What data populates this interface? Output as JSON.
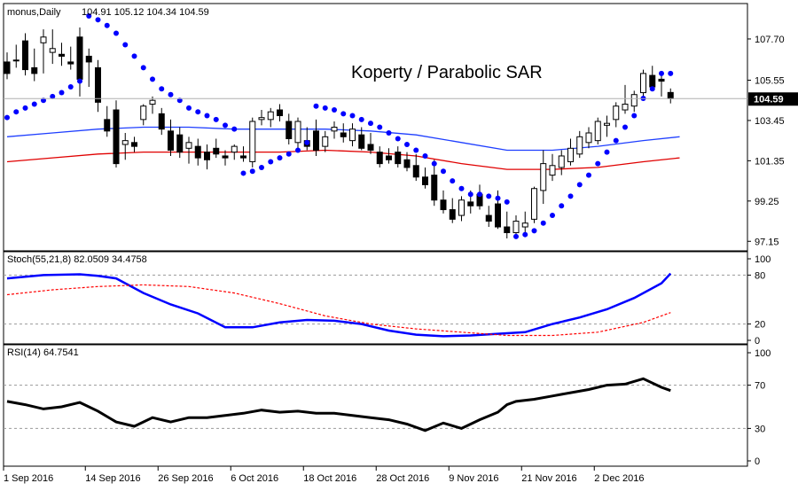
{
  "main": {
    "header": "monus,Daily",
    "ohlc_values": "104.91 105.12 104.34 104.59",
    "annotation": "Koperty / Parabolic SAR",
    "last_price_label": "104.59"
  },
  "stoch": {
    "header": "Stoch(55,21,8) 82.0509 34.4758",
    "levels": [
      100,
      80,
      20,
      0
    ]
  },
  "rsi": {
    "header": "RSI(14) 64.7541",
    "levels": [
      100,
      70,
      30,
      0
    ]
  },
  "colors": {
    "up": "#ffffff",
    "down": "#000000",
    "sar": "#0000ff",
    "ma_blue": "#1f3fff",
    "ma_red": "#e00000",
    "stoch_main": "#0000ff",
    "stoch_signal": "#ff0000",
    "rsi": "#000000"
  },
  "chart_data": [
    {
      "type": "candlestick",
      "title": "",
      "y_ticks": [
        107.7,
        105.55,
        103.45,
        101.35,
        99.25,
        97.15
      ],
      "ylim": [
        96.7,
        109.5
      ],
      "x_tick_labels": [
        "1 Sep 2016",
        "14 Sep 2016",
        "26 Sep 2016",
        "6 Oct 2016",
        "18 Oct 2016",
        "28 Oct 2016",
        "9 Nov 2016",
        "21 Nov 2016",
        "2 Dec 2016"
      ],
      "x_tick_index": [
        0,
        9,
        17,
        25,
        33,
        41,
        49,
        57,
        65
      ],
      "ohlc": [
        [
          106.5,
          107.0,
          105.6,
          105.9
        ],
        [
          106.6,
          107.4,
          106.2,
          106.6
        ],
        [
          107.6,
          108.0,
          105.8,
          106.1
        ],
        [
          106.2,
          107.2,
          105.5,
          105.9
        ],
        [
          107.5,
          108.2,
          105.9,
          107.8
        ],
        [
          107.0,
          108.2,
          106.4,
          107.2
        ],
        [
          106.9,
          107.5,
          106.3,
          106.8
        ],
        [
          106.5,
          107.3,
          106.1,
          106.4
        ],
        [
          107.8,
          108.3,
          104.7,
          105.6
        ],
        [
          106.8,
          107.2,
          105.2,
          106.5
        ],
        [
          106.2,
          106.6,
          103.9,
          104.4
        ],
        [
          103.5,
          104.2,
          102.6,
          102.9
        ],
        [
          104.0,
          104.5,
          101.0,
          101.2
        ],
        [
          102.2,
          102.8,
          101.4,
          102.4
        ],
        [
          102.3,
          102.6,
          101.8,
          102.1
        ],
        [
          103.5,
          104.3,
          103.2,
          104.2
        ],
        [
          104.3,
          104.7,
          103.8,
          104.5
        ],
        [
          103.8,
          104.1,
          102.7,
          103.0
        ],
        [
          102.9,
          103.5,
          101.6,
          101.9
        ],
        [
          102.7,
          103.1,
          101.5,
          101.8
        ],
        [
          102.0,
          102.6,
          101.2,
          102.3
        ],
        [
          102.1,
          102.5,
          101.1,
          101.5
        ],
        [
          101.8,
          102.2,
          100.9,
          101.4
        ],
        [
          102.0,
          102.5,
          101.5,
          101.7
        ],
        [
          101.6,
          101.9,
          101.1,
          101.5
        ],
        [
          101.8,
          102.2,
          101.4,
          102.1
        ],
        [
          101.6,
          102.1,
          101.3,
          101.5
        ],
        [
          101.3,
          103.6,
          101.0,
          103.4
        ],
        [
          103.5,
          104.0,
          103.2,
          103.6
        ],
        [
          103.5,
          104.1,
          103.1,
          103.9
        ],
        [
          104.0,
          104.3,
          103.4,
          103.7
        ],
        [
          103.4,
          103.8,
          102.2,
          102.5
        ],
        [
          102.3,
          103.6,
          102.0,
          103.4
        ],
        [
          102.4,
          103.1,
          101.9,
          102.1
        ],
        [
          102.9,
          103.5,
          101.6,
          101.9
        ],
        [
          102.1,
          102.9,
          101.8,
          102.6
        ],
        [
          102.9,
          103.4,
          102.5,
          103.1
        ],
        [
          102.8,
          103.3,
          102.3,
          102.6
        ],
        [
          102.4,
          103.3,
          102.1,
          103.0
        ],
        [
          102.7,
          103.1,
          101.9,
          102.0
        ],
        [
          102.2,
          102.8,
          101.7,
          101.9
        ],
        [
          101.8,
          102.1,
          101.0,
          101.2
        ],
        [
          101.6,
          102.0,
          101.2,
          101.4
        ],
        [
          101.8,
          102.1,
          101.0,
          101.2
        ],
        [
          101.4,
          101.8,
          100.8,
          101.0
        ],
        [
          101.1,
          101.7,
          100.3,
          100.5
        ],
        [
          100.5,
          101.0,
          99.9,
          100.1
        ],
        [
          100.6,
          101.4,
          99.0,
          99.3
        ],
        [
          99.3,
          99.8,
          98.6,
          98.8
        ],
        [
          98.8,
          99.4,
          98.1,
          98.3
        ],
        [
          98.5,
          99.5,
          98.2,
          99.3
        ],
        [
          99.2,
          99.8,
          98.6,
          99.0
        ],
        [
          99.6,
          100.1,
          98.8,
          99.0
        ],
        [
          98.5,
          99.0,
          97.9,
          98.2
        ],
        [
          99.1,
          99.8,
          97.8,
          97.9
        ],
        [
          97.9,
          98.7,
          97.3,
          97.6
        ],
        [
          97.6,
          98.5,
          97.3,
          98.2
        ],
        [
          97.9,
          98.7,
          97.6,
          98.1
        ],
        [
          98.3,
          100.0,
          98.1,
          99.9
        ],
        [
          99.8,
          101.9,
          99.1,
          101.2
        ],
        [
          100.6,
          101.7,
          100.3,
          101.1
        ],
        [
          101.0,
          101.9,
          100.6,
          101.6
        ],
        [
          101.3,
          102.5,
          101.1,
          102.0
        ],
        [
          101.7,
          102.9,
          101.5,
          102.6
        ],
        [
          102.3,
          103.1,
          102.0,
          102.8
        ],
        [
          102.4,
          103.6,
          102.2,
          103.4
        ],
        [
          103.2,
          103.7,
          102.6,
          103.3
        ],
        [
          103.5,
          104.4,
          103.1,
          104.2
        ],
        [
          104.0,
          105.3,
          103.8,
          104.3
        ],
        [
          104.2,
          105.0,
          103.9,
          104.8
        ],
        [
          104.9,
          106.1,
          104.6,
          105.9
        ],
        [
          105.8,
          106.3,
          105.0,
          105.2
        ],
        [
          105.6,
          106.0,
          104.7,
          105.5
        ],
        [
          104.91,
          105.12,
          104.34,
          104.59
        ]
      ],
      "sar": [
        [
          0,
          103.6
        ],
        [
          1,
          103.9
        ],
        [
          2,
          104.1
        ],
        [
          3,
          104.3
        ],
        [
          4,
          104.5
        ],
        [
          5,
          104.7
        ],
        [
          6,
          104.9
        ],
        [
          7,
          105.2
        ],
        [
          8,
          105.5
        ],
        [
          9,
          108.9
        ],
        [
          10,
          108.7
        ],
        [
          11,
          108.4
        ],
        [
          12,
          108.0
        ],
        [
          13,
          107.4
        ],
        [
          14,
          106.8
        ],
        [
          15,
          106.2
        ],
        [
          16,
          105.6
        ],
        [
          17,
          105.1
        ],
        [
          18,
          104.8
        ],
        [
          19,
          104.5
        ],
        [
          20,
          104.1
        ],
        [
          21,
          103.9
        ],
        [
          22,
          103.7
        ],
        [
          23,
          103.5
        ],
        [
          24,
          103.2
        ],
        [
          25,
          103.0
        ],
        [
          26,
          100.7
        ],
        [
          27,
          100.8
        ],
        [
          28,
          101.0
        ],
        [
          29,
          101.3
        ],
        [
          30,
          101.5
        ],
        [
          31,
          101.7
        ],
        [
          32,
          101.9
        ],
        [
          33,
          102.3
        ],
        [
          34,
          104.2
        ],
        [
          35,
          104.1
        ],
        [
          36,
          104.0
        ],
        [
          37,
          103.8
        ],
        [
          38,
          103.7
        ],
        [
          39,
          103.5
        ],
        [
          40,
          103.3
        ],
        [
          41,
          103.1
        ],
        [
          42,
          102.8
        ],
        [
          43,
          102.5
        ],
        [
          44,
          102.2
        ],
        [
          45,
          101.9
        ],
        [
          46,
          101.6
        ],
        [
          47,
          101.2
        ],
        [
          48,
          100.8
        ],
        [
          49,
          100.3
        ],
        [
          50,
          99.9
        ],
        [
          51,
          99.6
        ],
        [
          52,
          99.6
        ],
        [
          53,
          99.5
        ],
        [
          54,
          99.4
        ],
        [
          55,
          99.2
        ],
        [
          56,
          97.4
        ],
        [
          57,
          97.5
        ],
        [
          58,
          97.7
        ],
        [
          59,
          98.1
        ],
        [
          60,
          98.5
        ],
        [
          61,
          99.0
        ],
        [
          62,
          99.5
        ],
        [
          63,
          100.1
        ],
        [
          64,
          100.6
        ],
        [
          65,
          101.2
        ],
        [
          66,
          101.8
        ],
        [
          67,
          102.4
        ],
        [
          68,
          103.1
        ],
        [
          69,
          103.7
        ],
        [
          70,
          104.6
        ],
        [
          71,
          105.1
        ],
        [
          72,
          105.9
        ],
        [
          73,
          105.9
        ]
      ],
      "ma_blue": [
        [
          0,
          102.6
        ],
        [
          5,
          102.8
        ],
        [
          10,
          103.0
        ],
        [
          15,
          103.1
        ],
        [
          20,
          103.1
        ],
        [
          25,
          103.0
        ],
        [
          30,
          103.0
        ],
        [
          35,
          103.0
        ],
        [
          40,
          102.9
        ],
        [
          45,
          102.7
        ],
        [
          50,
          102.3
        ],
        [
          55,
          101.9
        ],
        [
          60,
          101.9
        ],
        [
          65,
          102.1
        ],
        [
          70,
          102.4
        ],
        [
          74,
          102.6
        ]
      ],
      "ma_red": [
        [
          0,
          101.3
        ],
        [
          5,
          101.5
        ],
        [
          10,
          101.7
        ],
        [
          15,
          101.8
        ],
        [
          20,
          101.8
        ],
        [
          25,
          101.8
        ],
        [
          30,
          101.8
        ],
        [
          35,
          101.9
        ],
        [
          40,
          101.8
        ],
        [
          45,
          101.6
        ],
        [
          50,
          101.2
        ],
        [
          55,
          100.9
        ],
        [
          60,
          100.9
        ],
        [
          65,
          101.0
        ],
        [
          70,
          101.3
        ],
        [
          74,
          101.5
        ]
      ]
    },
    {
      "type": "line",
      "title": "Stoch(55,21,8) 82.0509 34.4758",
      "ylim": [
        0,
        100
      ],
      "y_ticks": [
        100,
        80,
        20,
        0
      ],
      "series": [
        {
          "name": "main",
          "x": [
            0,
            4,
            8,
            10,
            12,
            15,
            18,
            21,
            24,
            27,
            30,
            33,
            36,
            39,
            42,
            45,
            48,
            51,
            54,
            57,
            60,
            63,
            66,
            69,
            72,
            73
          ],
          "y": [
            76,
            80,
            81,
            79,
            76,
            58,
            44,
            33,
            16,
            16,
            22,
            25,
            24,
            20,
            12,
            7,
            5,
            6,
            8,
            10,
            20,
            28,
            38,
            52,
            70,
            82
          ]
        },
        {
          "name": "signal",
          "x": [
            0,
            5,
            10,
            15,
            20,
            25,
            30,
            35,
            40,
            45,
            50,
            55,
            60,
            65,
            70,
            73
          ],
          "y": [
            56,
            62,
            66,
            68,
            66,
            58,
            45,
            30,
            20,
            14,
            10,
            6,
            6,
            10,
            22,
            34
          ]
        }
      ]
    },
    {
      "type": "line",
      "title": "RSI(14) 64.7541",
      "ylim": [
        0,
        100
      ],
      "y_ticks": [
        100,
        70,
        30,
        0
      ],
      "series": [
        {
          "name": "rsi",
          "x": [
            0,
            2,
            4,
            6,
            8,
            10,
            12,
            14,
            16,
            18,
            20,
            22,
            24,
            26,
            28,
            30,
            32,
            34,
            36,
            38,
            40,
            42,
            44,
            46,
            48,
            50,
            52,
            54,
            55,
            56,
            58,
            60,
            62,
            64,
            66,
            68,
            70,
            72,
            73
          ],
          "y": [
            55,
            52,
            48,
            50,
            54,
            46,
            36,
            32,
            40,
            36,
            40,
            40,
            42,
            44,
            47,
            45,
            46,
            44,
            44,
            42,
            40,
            38,
            34,
            28,
            35,
            30,
            38,
            45,
            52,
            55,
            57,
            60,
            63,
            66,
            70,
            71,
            76,
            68,
            65
          ]
        }
      ]
    }
  ]
}
